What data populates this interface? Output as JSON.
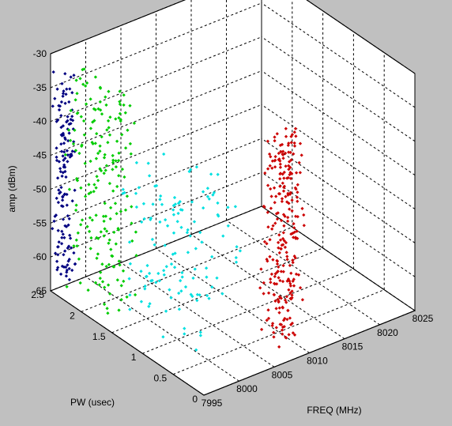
{
  "chart_data": {
    "type": "scatter",
    "projection": "3d",
    "xlabel": "FREQ (MHz)",
    "ylabel": "PW (usec)",
    "zlabel": "amp (dBm)",
    "xlim": [
      7995,
      8025
    ],
    "ylim": [
      0,
      2.5
    ],
    "zlim": [
      -65,
      -30
    ],
    "xticks": [
      "7995",
      "8000",
      "8005",
      "8010",
      "8015",
      "8020",
      "8025"
    ],
    "yticks": [
      "0",
      "0.5",
      "1",
      "1.5",
      "2",
      "2.5"
    ],
    "zticks": [
      "-65",
      "-60",
      "-55",
      "-50",
      "-45",
      "-40",
      "-35",
      "-30"
    ],
    "grid": true,
    "background_color": "#c0c0c0",
    "series": [
      {
        "color": "#000080",
        "x_range": [
          7995,
          7997
        ],
        "y_range": [
          2.3,
          2.5
        ],
        "z_range": [
          -63,
          -32
        ]
      },
      {
        "color": "#00cc00",
        "x_range": [
          7996,
          7999
        ],
        "y_range": [
          1.5,
          2.4
        ],
        "z_range": [
          -64,
          -32
        ]
      },
      {
        "color": "#00e0e0",
        "x_range": [
          7997,
          8005
        ],
        "y_range": [
          0.4,
          1.8
        ],
        "z_range": [
          -63,
          -42
        ]
      },
      {
        "color": "#cc0000",
        "x_range": [
          8006,
          8010
        ],
        "y_range": [
          0.05,
          0.35
        ],
        "z_range": [
          -63,
          -33
        ]
      }
    ]
  }
}
